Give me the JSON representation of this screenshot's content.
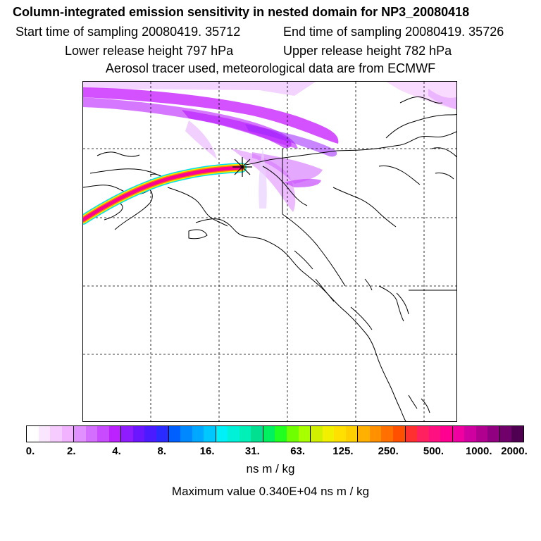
{
  "header": {
    "title": "Column-integrated emission sensitivity in nested domain for NP3_20080418",
    "start_time": "Start time of sampling 20080419. 35712",
    "end_time": "End time of sampling 20080419. 35726",
    "lower_release": "Lower release height  797 hPa",
    "upper_release": "Upper release height  782 hPa",
    "tracer_info": "Aerosol tracer used, meteorological data are from ECMWF"
  },
  "map": {
    "region": "Alaska / Northwest North America",
    "release_marker": "release-point"
  },
  "colorbar": {
    "colors": [
      "#ffffff",
      "#fbe6ff",
      "#f6ccff",
      "#f1b3ff",
      "#e090ff",
      "#d46eff",
      "#c84bff",
      "#bb22ff",
      "#8f1bff",
      "#6a17ff",
      "#4a1bff",
      "#2a2bff",
      "#0060ff",
      "#0088ff",
      "#00a8ff",
      "#00c8ff",
      "#00f0f8",
      "#00f0d8",
      "#00f0b8",
      "#00e090",
      "#00f060",
      "#20ff20",
      "#70ff00",
      "#a8ff00",
      "#d0f000",
      "#f0f000",
      "#ffe000",
      "#ffd000",
      "#ffb000",
      "#ff9000",
      "#ff7000",
      "#ff5000",
      "#ff3030",
      "#ff2060",
      "#ff1080",
      "#ff0090",
      "#f000a0",
      "#d000a0",
      "#b00090",
      "#900080",
      "#70006a",
      "#500050"
    ],
    "tick_labels": [
      "0.",
      "2.",
      "4.",
      "8.",
      "16.",
      "31.",
      "63.",
      "125.",
      "250.",
      "500.",
      "1000.",
      "2000."
    ],
    "unit_label": "ns m / kg",
    "max_value_text": "Maximum value  0.340E+04 ns m / kg"
  }
}
